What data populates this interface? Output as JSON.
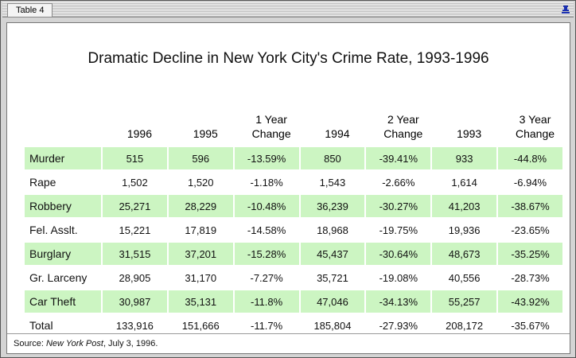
{
  "window": {
    "title": "Table 4"
  },
  "table": {
    "title": "Dramatic Decline in New York City's Crime Rate, 1993-1996",
    "columns": [
      "1996",
      "1995",
      "1 Year Change",
      "1994",
      "2 Year Change",
      "1993",
      "3 Year Change"
    ],
    "rows": [
      [
        "Murder",
        "515",
        "596",
        "-13.59%",
        "850",
        "-39.41%",
        "933",
        "-44.8%"
      ],
      [
        "Rape",
        "1,502",
        "1,520",
        "-1.18%",
        "1,543",
        "-2.66%",
        "1,614",
        "-6.94%"
      ],
      [
        "Robbery",
        "25,271",
        "28,229",
        "-10.48%",
        "36,239",
        "-30.27%",
        "41,203",
        "-38.67%"
      ],
      [
        "Fel. Asslt.",
        "15,221",
        "17,819",
        "-14.58%",
        "18,968",
        "-19.75%",
        "19,936",
        "-23.65%"
      ],
      [
        "Burglary",
        "31,515",
        "37,201",
        "-15.28%",
        "45,437",
        "-30.64%",
        "48,673",
        "-35.25%"
      ],
      [
        "Gr. Larceny",
        "28,905",
        "31,170",
        "-7.27%",
        "35,721",
        "-19.08%",
        "40,556",
        "-28.73%"
      ],
      [
        "Car Theft",
        "30,987",
        "35,131",
        "-11.8%",
        "47,046",
        "-34.13%",
        "55,257",
        "-43.92%"
      ],
      [
        "Total",
        "133,916",
        "151,666",
        "-11.7%",
        "185,804",
        "-27.93%",
        "208,172",
        "-35.67%"
      ]
    ]
  },
  "source": {
    "label": "Source:",
    "publication": "New York Post",
    "date": ", July 3, 1996."
  }
}
